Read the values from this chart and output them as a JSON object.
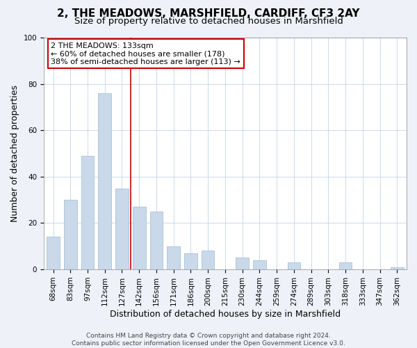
{
  "title": "2, THE MEADOWS, MARSHFIELD, CARDIFF, CF3 2AY",
  "subtitle": "Size of property relative to detached houses in Marshfield",
  "xlabel": "Distribution of detached houses by size in Marshfield",
  "ylabel": "Number of detached properties",
  "bar_labels": [
    "68sqm",
    "83sqm",
    "97sqm",
    "112sqm",
    "127sqm",
    "142sqm",
    "156sqm",
    "171sqm",
    "186sqm",
    "200sqm",
    "215sqm",
    "230sqm",
    "244sqm",
    "259sqm",
    "274sqm",
    "289sqm",
    "303sqm",
    "318sqm",
    "333sqm",
    "347sqm",
    "362sqm"
  ],
  "bar_values": [
    14,
    30,
    49,
    76,
    35,
    27,
    25,
    10,
    7,
    8,
    0,
    5,
    4,
    0,
    3,
    0,
    0,
    3,
    0,
    0,
    1
  ],
  "bar_color": "#c9d9ea",
  "bar_edge_color": "#a8c0d8",
  "vline_x": 4.5,
  "vline_color": "#cc0000",
  "ylim": [
    0,
    100
  ],
  "annotation_box_text": "2 THE MEADOWS: 133sqm\n← 60% of detached houses are smaller (178)\n38% of semi-detached houses are larger (113) →",
  "footer_line1": "Contains HM Land Registry data © Crown copyright and database right 2024.",
  "footer_line2": "Contains public sector information licensed under the Open Government Licence v3.0.",
  "background_color": "#eef2f8",
  "plot_background_color": "#ffffff",
  "title_fontsize": 11,
  "subtitle_fontsize": 9.5,
  "axis_label_fontsize": 9,
  "tick_fontsize": 7.5,
  "footer_fontsize": 6.5
}
